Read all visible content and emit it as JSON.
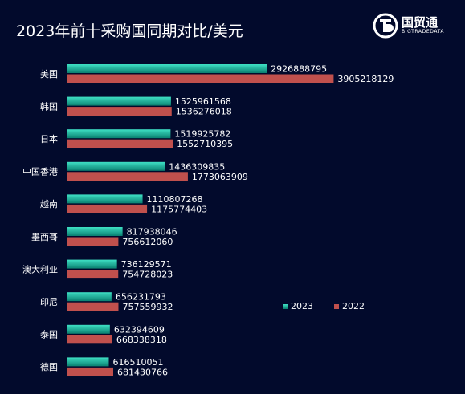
{
  "title": "2023年前十采购国同期对比/美元",
  "logo": {
    "name": "国贸通",
    "sub": "BIGTRADEDATA",
    "icon": "bigtradedata-logo-icon"
  },
  "colors": {
    "background": "#020a2c",
    "series_2023_top": "#3ee0c4",
    "series_2023_bottom": "#0a8070",
    "series_2022": "#c0504d"
  },
  "chart_data": {
    "type": "bar",
    "orientation": "horizontal",
    "categories": [
      "美国",
      "韩国",
      "日本",
      "中国香港",
      "越南",
      "墨西哥",
      "澳大利亚",
      "印尼",
      "泰国",
      "德国"
    ],
    "series": [
      {
        "name": "2023",
        "values": [
          2926888795,
          1525961568,
          1519925782,
          1436309835,
          1110807268,
          817938046,
          736129571,
          656231793,
          632394609,
          616510051
        ]
      },
      {
        "name": "2022",
        "values": [
          3905218129,
          1536276018,
          1552710395,
          1773063909,
          1175774403,
          756612060,
          754728023,
          757559932,
          668338318,
          681430766
        ]
      }
    ],
    "xlim": [
      0,
      4200000000
    ],
    "grid": false,
    "legend_position": "lower-right"
  }
}
